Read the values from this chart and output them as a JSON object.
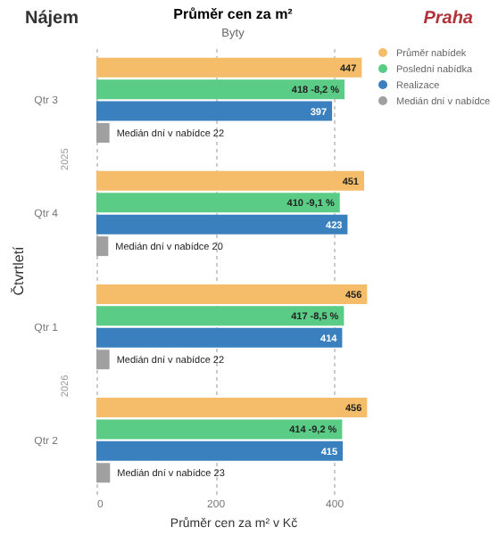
{
  "chart_data": {
    "type": "bar",
    "orientation": "horizontal",
    "title": "Průměr cen za m²",
    "subtitle": "Byty",
    "xlabel": "Průměr cen za m² v Kč",
    "ylabel": "Čtvrtletí",
    "annotations": [
      "Nájem",
      "Praha",
      "2025",
      "2026"
    ],
    "categories": [
      "Qtr 3",
      "Qtr 4",
      "Qtr 1",
      "Qtr 2"
    ],
    "series": [
      {
        "name": "Průměr nabídek",
        "color": "#f5bd6a",
        "values": [
          447,
          451,
          456,
          456
        ],
        "value_labels": [
          "447",
          "451",
          "456",
          "456"
        ]
      },
      {
        "name": "Poslední nabídka",
        "color": "#5bcc85",
        "values": [
          418,
          410,
          417,
          414
        ],
        "value_labels": [
          "418 -8,2 %",
          "410 -9,1 %",
          "417 -8,5 %",
          "414 -9,2 %"
        ]
      },
      {
        "name": "Realizace",
        "color": "#3a80bf",
        "values": [
          397,
          423,
          414,
          415
        ],
        "value_labels": [
          "397",
          "423",
          "414",
          "415"
        ]
      },
      {
        "name": "Medián dní v nabídce",
        "color": "#a0a0a0",
        "values": [
          22,
          20,
          22,
          23
        ],
        "value_labels": [
          "22",
          "20",
          "22",
          "23"
        ]
      }
    ],
    "xlim": [
      0,
      460
    ],
    "xticks": [
      0,
      200,
      400
    ],
    "grid": "x",
    "legend": "right"
  }
}
